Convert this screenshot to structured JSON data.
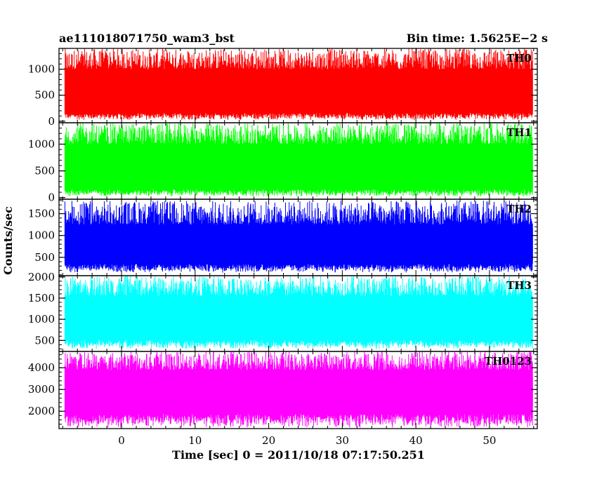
{
  "header": {
    "title": "ae111018071750_wam3_bst",
    "bin_time": "Bin time: 1.5625E−2 s"
  },
  "axes": {
    "ylabel": "Counts/sec",
    "xlabel": "Time [sec] 0 = 2011/10/18 07:17:50.251"
  },
  "chart_data": {
    "type": "line",
    "title": "ae111018071750_wam3_bst",
    "subtitle": "Bin time: 1.5625E−2 s",
    "xlabel": "Time [sec] 0 = 2011/10/18 07:17:50.251",
    "ylabel": "Counts/sec",
    "xlim": [
      -8.5,
      56.5
    ],
    "x_range_data": [
      -7.7,
      55.9
    ],
    "bin_time": 0.015625,
    "x_ticks": [
      0,
      10,
      20,
      30,
      40,
      50
    ],
    "x_tick_labels": [
      "0",
      "10",
      "20",
      "30",
      "40",
      "50"
    ],
    "grid": false,
    "series": [
      {
        "name": "TH0",
        "color": "#ff0000",
        "ylim": [
          -30,
          1400
        ],
        "y_ticks": [
          0,
          500,
          1000
        ],
        "y_tick_labels": [
          "0",
          "500",
          "1000"
        ],
        "mean": 630,
        "low_range": [
          20,
          160
        ],
        "high_range": [
          1000,
          1400
        ]
      },
      {
        "name": "TH1",
        "color": "#00ff00",
        "ylim": [
          -30,
          1400
        ],
        "y_ticks": [
          0,
          500,
          1000
        ],
        "y_tick_labels": [
          "0",
          "500",
          "1000"
        ],
        "mean": 620,
        "low_range": [
          20,
          160
        ],
        "high_range": [
          1000,
          1400
        ]
      },
      {
        "name": "TH2",
        "color": "#0000ff",
        "ylim": [
          80,
          1830
        ],
        "y_ticks": [
          500,
          1000,
          1500
        ],
        "y_tick_labels": [
          "500",
          "1000",
          "1500"
        ],
        "mean": 760,
        "low_range": [
          150,
          350
        ],
        "high_range": [
          1250,
          1800
        ]
      },
      {
        "name": "TH3",
        "color": "#00ffff",
        "ylim": [
          240,
          2030
        ],
        "y_ticks": [
          500,
          1000,
          1500,
          2000
        ],
        "y_tick_labels": [
          "500",
          "1000",
          "1500",
          "2000"
        ],
        "mean": 1000,
        "low_range": [
          300,
          520
        ],
        "high_range": [
          1550,
          2030
        ]
      },
      {
        "name": "TH0123",
        "color": "#ff00ff",
        "ylim": [
          1200,
          4750
        ],
        "y_ticks": [
          2000,
          3000,
          4000
        ],
        "y_tick_labels": [
          "2000",
          "3000",
          "4000"
        ],
        "mean": 2900,
        "low_range": [
          1250,
          1900
        ],
        "high_range": [
          3900,
          4750
        ]
      }
    ]
  }
}
